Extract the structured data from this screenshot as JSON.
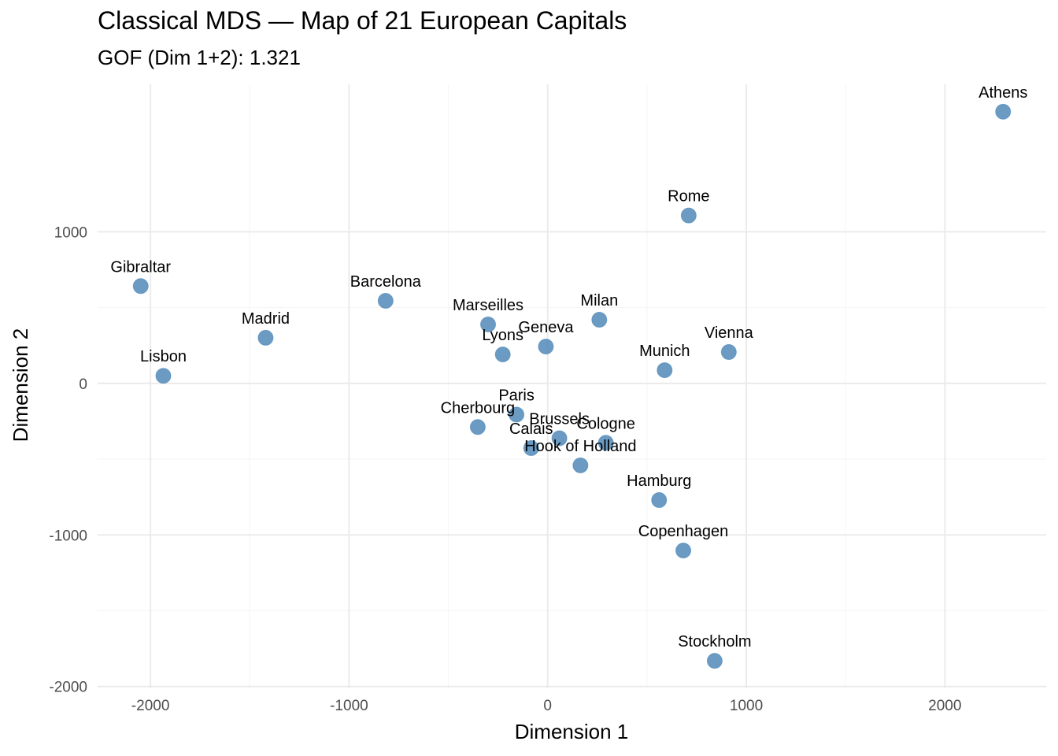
{
  "chart_data": {
    "type": "scatter",
    "title": "Classical MDS — Map of 21 European Capitals",
    "subtitle": "GOF (Dim 1+2): 1.321",
    "xlabel": "Dimension 1",
    "ylabel": "Dimension 2",
    "xlim": [
      -2266,
      2510
    ],
    "ylim": [
      -2012,
      1974
    ],
    "xticks": [
      -2000,
      -1000,
      0,
      1000,
      2000
    ],
    "yticks": [
      -2000,
      -1000,
      0,
      1000
    ],
    "xtick_labels": [
      "-2000",
      "-1000",
      "0",
      "1000",
      "2000"
    ],
    "ytick_labels": [
      "-2000",
      "-1000",
      "0",
      "1000"
    ],
    "grid": true,
    "legend": "none",
    "point_color": "#4682B4",
    "points": [
      {
        "label": "Athens",
        "x": 2293,
        "y": 1793
      },
      {
        "label": "Barcelona",
        "x": -816,
        "y": 545
      },
      {
        "label": "Brussels",
        "x": 59,
        "y": -362
      },
      {
        "label": "Calais",
        "x": -83,
        "y": -427
      },
      {
        "label": "Cherbourg",
        "x": -352,
        "y": -288
      },
      {
        "label": "Cologne",
        "x": 293,
        "y": -392
      },
      {
        "label": "Copenhagen",
        "x": 683,
        "y": -1103
      },
      {
        "label": "Geneva",
        "x": -9,
        "y": 243
      },
      {
        "label": "Gibraltar",
        "x": -2049,
        "y": 642
      },
      {
        "label": "Hamburg",
        "x": 561,
        "y": -770
      },
      {
        "label": "Hook of Holland",
        "x": 165,
        "y": -541
      },
      {
        "label": "Lisbon",
        "x": -1935,
        "y": 50
      },
      {
        "label": "Lyons",
        "x": -226,
        "y": 191
      },
      {
        "label": "Madrid",
        "x": -1420,
        "y": 301
      },
      {
        "label": "Marseilles",
        "x": -300,
        "y": 389
      },
      {
        "label": "Milan",
        "x": 260,
        "y": 420
      },
      {
        "label": "Munich",
        "x": 589,
        "y": 87
      },
      {
        "label": "Paris",
        "x": -157,
        "y": -206
      },
      {
        "label": "Rome",
        "x": 710,
        "y": 1108
      },
      {
        "label": "Stockholm",
        "x": 841,
        "y": -1831
      },
      {
        "label": "Vienna",
        "x": 912,
        "y": 207
      }
    ]
  }
}
